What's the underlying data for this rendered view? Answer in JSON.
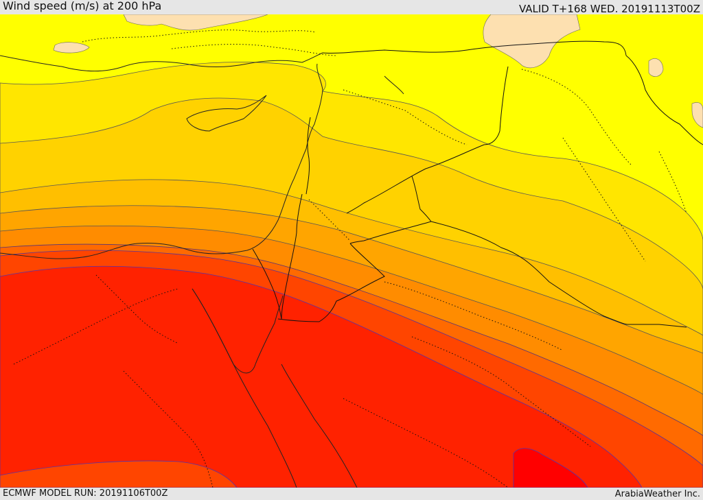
{
  "header": {
    "title": "Wind speed (m/s) at 200 hPa",
    "valid_time": "VALID T+168 WED. 20191113T00Z"
  },
  "footer": {
    "model_run": "ECMWF MODEL RUN: 20191106T00Z",
    "credit": "ArabiaWeather Inc."
  },
  "map": {
    "region": "Eastern Mediterranean / Levant / Egypt / Northern Arabia",
    "field": "wind speed at 200 hPa",
    "colors": {
      "lightest": "#fde0b0",
      "yellow": "#ffff00",
      "gold_light": "#ffe600",
      "gold": "#ffd200",
      "amber": "#ffbf00",
      "orange_light": "#ffa500",
      "orange": "#ff8c00",
      "orange_dark": "#ff6a00",
      "red_orange": "#ff4500",
      "red": "#ff2200",
      "red_core": "#ff0000"
    }
  }
}
